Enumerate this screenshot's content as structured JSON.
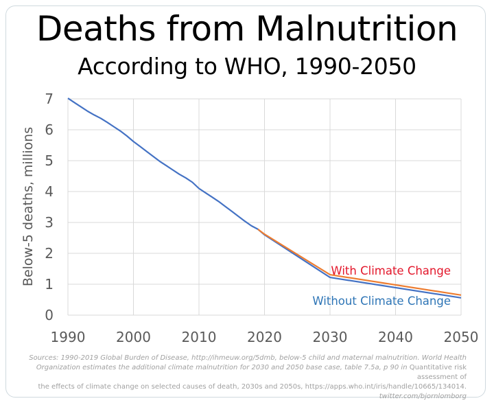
{
  "chart_data": {
    "type": "line",
    "title": "Deaths from Malnutrition",
    "subtitle": "According to WHO, 1990-2050",
    "xlabel": "",
    "ylabel": "Below-5 deaths, millions",
    "xlim": [
      1990,
      2050
    ],
    "ylim": [
      0,
      7
    ],
    "x_ticks": [
      1990,
      2000,
      2010,
      2020,
      2030,
      2040,
      2050
    ],
    "y_ticks": [
      0,
      1,
      2,
      3,
      4,
      5,
      6,
      7
    ],
    "grid": true,
    "legend_placement": "inline-right",
    "series": [
      {
        "name": "With Climate Change",
        "color": "#ed7d31",
        "label_color": "#e3172b",
        "x": [
          2019,
          2020,
          2030,
          2050
        ],
        "y": [
          2.78,
          2.62,
          1.31,
          0.65
        ]
      },
      {
        "name": "Without Climate Change",
        "color": "#4472c4",
        "label_color": "#2e75b6",
        "x": [
          1990,
          1991,
          1992,
          1993,
          1994,
          1995,
          1996,
          1997,
          1998,
          1999,
          2000,
          2001,
          2002,
          2003,
          2004,
          2005,
          2006,
          2007,
          2008,
          2009,
          2010,
          2011,
          2012,
          2013,
          2014,
          2015,
          2016,
          2017,
          2018,
          2019,
          2020,
          2030,
          2050
        ],
        "y": [
          7.02,
          6.88,
          6.74,
          6.6,
          6.48,
          6.37,
          6.24,
          6.1,
          5.96,
          5.8,
          5.62,
          5.46,
          5.3,
          5.14,
          4.98,
          4.84,
          4.7,
          4.56,
          4.44,
          4.3,
          4.1,
          3.96,
          3.82,
          3.68,
          3.52,
          3.36,
          3.2,
          3.04,
          2.89,
          2.78,
          2.6,
          1.22,
          0.56
        ]
      }
    ]
  },
  "sources": {
    "line1": "Sources: 1990-2019 Global Burden of Disease, http://ihmeuw.org/5dmb, below-5 child and maternal malnutrition. World Health",
    "line2_italic": "Organization estimates the additional climate malnutrition for 2030 and 2050 base case, table 7.5a, p 90 in",
    "line2_upright": " Quantitative risk assessment of",
    "line3": "the effects of climate change on selected causes of death, 2030s and 2050s, https://apps.who.int/iris/handle/10665/134014.",
    "line4": "twitter.com/bjornlomborg"
  }
}
